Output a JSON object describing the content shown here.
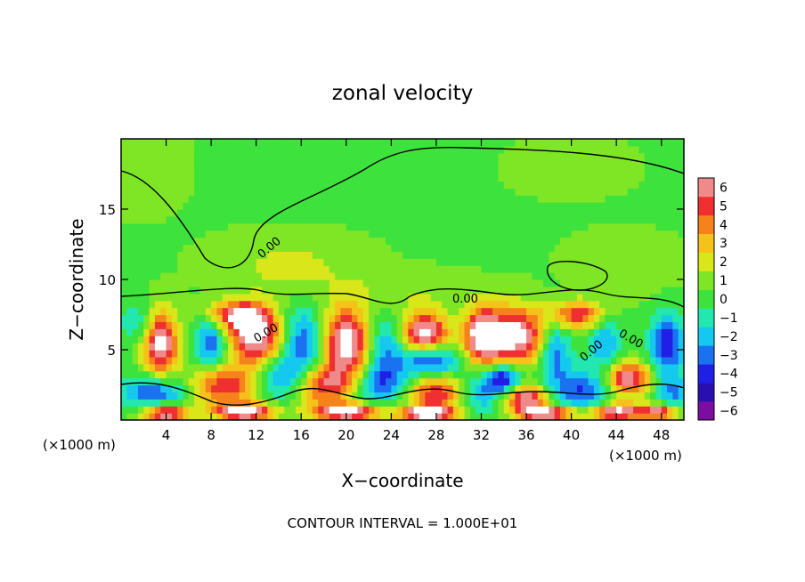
{
  "chart_data": {
    "type": "heatmap",
    "title": "zonal velocity",
    "xlabel": "X−coordinate",
    "ylabel": "Z−coordinate",
    "x_unit_left": "(×1000 m)",
    "x_unit_right": "(×1000 m)",
    "xlim": [
      0,
      50
    ],
    "ylim": [
      0,
      20
    ],
    "x_ticks": [
      4,
      8,
      12,
      16,
      20,
      24,
      28,
      32,
      36,
      40,
      44,
      48
    ],
    "x_tick_labels": [
      "4",
      "8",
      "12",
      "16",
      "20",
      "24",
      "28",
      "32",
      "36",
      "40",
      "44",
      "48"
    ],
    "y_ticks": [
      5,
      10,
      15
    ],
    "y_tick_labels": [
      "5",
      "10",
      "15"
    ],
    "colorbar": {
      "levels": [
        -6,
        -5,
        -4,
        -3,
        -2,
        -1,
        0,
        1,
        2,
        3,
        4,
        5,
        6
      ],
      "labels": [
        "−6",
        "−5",
        "−4",
        "−3",
        "−2",
        "−1",
        "0",
        "1",
        "2",
        "3",
        "4",
        "5",
        "6"
      ],
      "colors": [
        "#7b0da0",
        "#2a0fb0",
        "#1f1fe6",
        "#1b72f0",
        "#14c8f0",
        "#22e8b0",
        "#3ee23c",
        "#7fe626",
        "#d8e61a",
        "#f5c21a",
        "#f5821a",
        "#f03030",
        "#f08a8a"
      ]
    },
    "contour_labels": [
      "0.00",
      "0.00",
      "0.00",
      "0.00",
      "0.00"
    ],
    "footer": "CONTOUR INTERVAL = 1.000E+01",
    "grid": false,
    "field_blobs": [
      {
        "x": 1.5,
        "z": 18,
        "v": 0.3,
        "rx": 5,
        "rz": 4
      },
      {
        "x": 40,
        "z": 18,
        "v": 0.2,
        "rx": 8,
        "rz": 3
      },
      {
        "x": 15,
        "z": 11,
        "v": 1.4,
        "rx": 6,
        "rz": 2
      },
      {
        "x": 25,
        "z": 9,
        "v": 1.0,
        "rx": 6,
        "rz": 1.5
      },
      {
        "x": 45,
        "z": 11,
        "v": 0.8,
        "rx": 5,
        "rz": 2
      },
      {
        "x": 1.5,
        "z": 7,
        "v": -2,
        "rx": 1.5,
        "rz": 1.5
      },
      {
        "x": 3.5,
        "z": 5.5,
        "v": 7,
        "rx": 1.5,
        "rz": 2.2
      },
      {
        "x": 8,
        "z": 5.5,
        "v": -4,
        "rx": 1.5,
        "rz": 2
      },
      {
        "x": 10,
        "z": 7.5,
        "v": 5,
        "rx": 2.5,
        "rz": 1
      },
      {
        "x": 12,
        "z": 6,
        "v": 7,
        "rx": 2.5,
        "rz": 2
      },
      {
        "x": 16,
        "z": 5.5,
        "v": -4,
        "rx": 2,
        "rz": 2.5
      },
      {
        "x": 20,
        "z": 5.5,
        "v": 7,
        "rx": 2,
        "rz": 2.5
      },
      {
        "x": 23.5,
        "z": 5,
        "v": -3,
        "rx": 1.5,
        "rz": 2.5
      },
      {
        "x": 27,
        "z": 6.2,
        "v": 7,
        "rx": 2,
        "rz": 1.4
      },
      {
        "x": 27.5,
        "z": 4.2,
        "v": -5,
        "rx": 2.5,
        "rz": 1.2
      },
      {
        "x": 32,
        "z": 6,
        "v": 6,
        "rx": 1.5,
        "rz": 2
      },
      {
        "x": 35,
        "z": 6,
        "v": 7,
        "rx": 3,
        "rz": 2
      },
      {
        "x": 38.5,
        "z": 5,
        "v": -4,
        "rx": 1.5,
        "rz": 2.5
      },
      {
        "x": 40.5,
        "z": 7.5,
        "v": 5,
        "rx": 2.5,
        "rz": 1
      },
      {
        "x": 43,
        "z": 5.5,
        "v": -3,
        "rx": 1.5,
        "rz": 2
      },
      {
        "x": 48.5,
        "z": 5.5,
        "v": -5,
        "rx": 1.5,
        "rz": 2
      },
      {
        "x": 3,
        "z": 2,
        "v": -4,
        "rx": 3,
        "rz": 1.2
      },
      {
        "x": 9,
        "z": 2.5,
        "v": 5,
        "rx": 3,
        "rz": 1.5
      },
      {
        "x": 14,
        "z": 3,
        "v": -3,
        "rx": 2,
        "rz": 1.5
      },
      {
        "x": 18,
        "z": 2.5,
        "v": 5,
        "rx": 2.5,
        "rz": 1.4
      },
      {
        "x": 23,
        "z": 2.5,
        "v": -3,
        "rx": 2.5,
        "rz": 1.5
      },
      {
        "x": 28,
        "z": 2,
        "v": 5,
        "rx": 2.5,
        "rz": 1.5
      },
      {
        "x": 32,
        "z": 2,
        "v": -3,
        "rx": 2,
        "rz": 1.5
      },
      {
        "x": 34,
        "z": 3,
        "v": -5,
        "rx": 1.5,
        "rz": 1
      },
      {
        "x": 36,
        "z": 1.5,
        "v": 6,
        "rx": 2,
        "rz": 1
      },
      {
        "x": 41,
        "z": 2,
        "v": -4,
        "rx": 2.5,
        "rz": 1.5
      },
      {
        "x": 45,
        "z": 3,
        "v": 6,
        "rx": 2,
        "rz": 1.2
      },
      {
        "x": 49,
        "z": 2,
        "v": -3,
        "rx": 1.5,
        "rz": 1.5
      },
      {
        "x": 4,
        "z": 0.5,
        "v": 7,
        "rx": 2,
        "rz": 0.6
      },
      {
        "x": 11,
        "z": 0.6,
        "v": 7,
        "rx": 2.5,
        "rz": 0.6
      },
      {
        "x": 20,
        "z": 0.6,
        "v": 7,
        "rx": 3,
        "rz": 0.6
      },
      {
        "x": 27,
        "z": 0.5,
        "v": 7,
        "rx": 2.5,
        "rz": 0.5
      },
      {
        "x": 38,
        "z": 0.5,
        "v": 7,
        "rx": 2.5,
        "rz": 0.5
      },
      {
        "x": 44,
        "z": 0.6,
        "v": 7,
        "rx": 2.5,
        "rz": 0.6
      },
      {
        "x": 48,
        "z": 0.6,
        "v": 6,
        "rx": 1.5,
        "rz": 0.5
      }
    ]
  }
}
